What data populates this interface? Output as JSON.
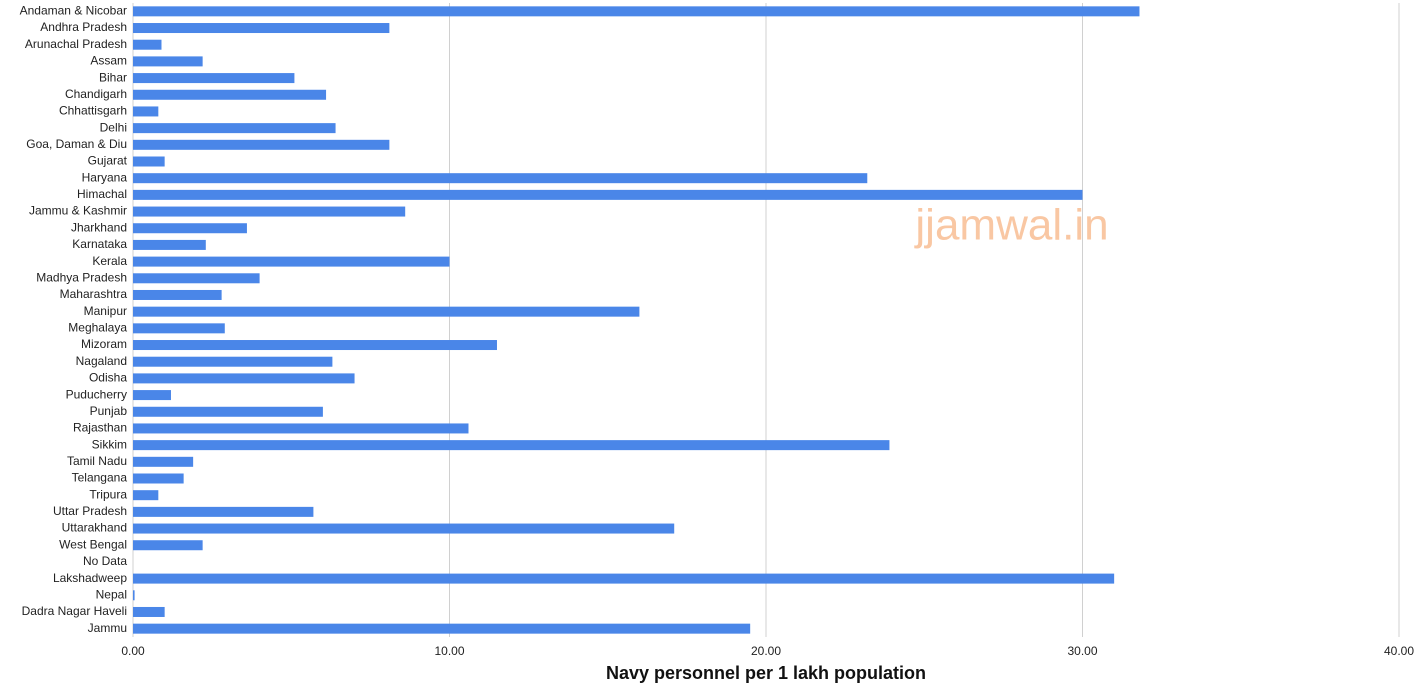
{
  "chart_data": {
    "type": "hbar",
    "x_label": "Navy personnel per 1 lakh population",
    "annotation": "jjamwal.in",
    "color": "#4a86e8",
    "categories": [
      "Andaman & Nicobar",
      "Andhra Pradesh",
      "Arunachal Pradesh",
      "Assam",
      "Bihar",
      "Chandigarh",
      "Chhattisgarh",
      "Delhi",
      "Goa, Daman & Diu",
      "Gujarat",
      "Haryana",
      "Himachal",
      "Jammu & Kashmir",
      "Jharkhand",
      "Karnataka",
      "Kerala",
      "Madhya Pradesh",
      "Maharashtra",
      "Manipur",
      "Meghalaya",
      "Mizoram",
      "Nagaland",
      "Odisha",
      "Puducherry",
      "Punjab",
      "Rajasthan",
      "Sikkim",
      "Tamil Nadu",
      "Telangana",
      "Tripura",
      "Uttar Pradesh",
      "Uttarakhand",
      "West Bengal",
      "No Data",
      "Lakshadweep",
      "Nepal",
      "Dadra Nagar Haveli",
      "Jammu"
    ],
    "values": [
      31.8,
      8.1,
      0.9,
      2.2,
      5.1,
      6.1,
      0.8,
      6.4,
      8.1,
      1.0,
      23.2,
      30.0,
      8.6,
      3.6,
      2.3,
      10.0,
      4.0,
      2.8,
      16.0,
      2.9,
      11.5,
      6.3,
      7.0,
      1.2,
      6.0,
      10.6,
      23.9,
      1.9,
      1.6,
      0.8,
      5.7,
      17.1,
      2.2,
      null,
      31.0,
      0.05,
      1.0,
      19.5
    ],
    "xlim": [
      0,
      40
    ],
    "xticks": [
      {
        "value": 0,
        "label": "0.00"
      },
      {
        "value": 10,
        "label": "10.00"
      },
      {
        "value": 20,
        "label": "20.00"
      },
      {
        "value": 30,
        "label": "30.00"
      },
      {
        "value": 40,
        "label": "40.00"
      }
    ],
    "grid": true
  }
}
